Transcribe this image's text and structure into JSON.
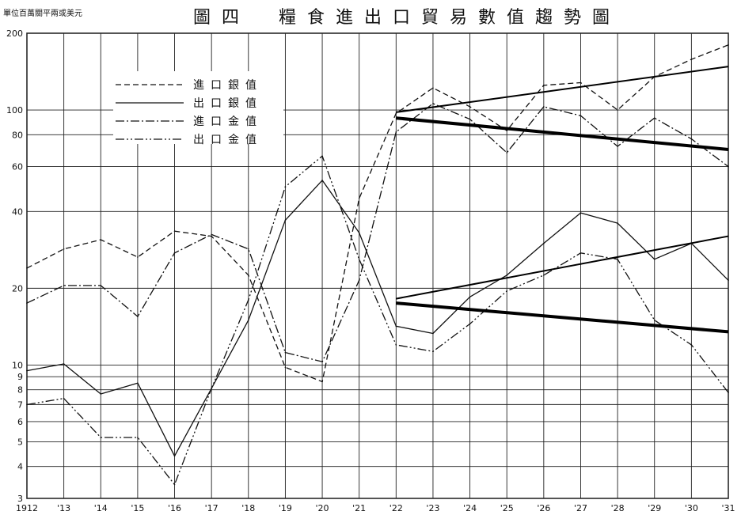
{
  "header": {
    "unit_note": "單位百萬關平兩或美元",
    "title": "圖四　糧食進出口貿易數值趨勢圖"
  },
  "chart_data": {
    "type": "line",
    "title": "圖四　糧食進出口貿易數值趨勢圖",
    "ylabel": "單位百萬關平兩或美元",
    "xlabel": "",
    "y_scale": "log",
    "ylim": [
      3,
      200
    ],
    "x": [
      1912,
      1913,
      1914,
      1915,
      1916,
      1917,
      1918,
      1919,
      1920,
      1921,
      1922,
      1923,
      1924,
      1925,
      1926,
      1927,
      1928,
      1929,
      1930,
      1931
    ],
    "x_tick_labels": [
      "1912",
      "'13",
      "'14",
      "'15",
      "'16",
      "'17",
      "'18",
      "'19",
      "'20",
      "'21",
      "'22",
      "'23",
      "'24",
      "'25",
      "'26",
      "'27",
      "'28",
      "'29",
      "'30",
      "'31"
    ],
    "y_ticks": [
      3,
      4,
      5,
      6,
      7,
      8,
      9,
      10,
      20,
      40,
      60,
      80,
      100,
      200
    ],
    "y_tick_labels": [
      "3",
      "4",
      "5",
      "6",
      "7",
      "8",
      "9",
      "10",
      "20",
      "40",
      "60",
      "80",
      "100",
      "200"
    ],
    "series": [
      {
        "name": "進口銀值",
        "style": "dashed",
        "values": [
          24,
          28.5,
          31,
          26.5,
          33.5,
          32,
          22.5,
          9.8,
          8.6,
          45,
          97,
          122,
          103,
          83,
          125,
          128,
          100,
          135,
          158,
          180
        ]
      },
      {
        "name": "出口銀值",
        "style": "solid",
        "values": [
          9.5,
          10.1,
          7.7,
          8.5,
          4.4,
          8.1,
          15,
          37,
          53,
          33,
          14.2,
          13.3,
          18.5,
          22.5,
          30,
          39.5,
          36,
          26,
          30,
          21.5
        ]
      },
      {
        "name": "進口金值",
        "style": "dashdot",
        "values": [
          17.5,
          20.5,
          20.5,
          15.5,
          27.5,
          32.5,
          28.5,
          11.2,
          10.3,
          21.5,
          82,
          106,
          92,
          68,
          103,
          95,
          72,
          93,
          77,
          60
        ]
      },
      {
        "name": "出口金值",
        "style": "dashdotdot",
        "values": [
          7,
          7.4,
          5.2,
          5.2,
          3.4,
          8.1,
          18,
          50,
          66,
          26,
          12,
          11.3,
          14.5,
          19.5,
          22.5,
          27.5,
          26,
          15,
          12,
          7.8
        ]
      }
    ],
    "trend_lines": [
      {
        "label": "",
        "weight": "thin",
        "x": [
          1922,
          1931
        ],
        "y": [
          98,
          148
        ]
      },
      {
        "label": "",
        "weight": "thick",
        "x": [
          1922,
          1931
        ],
        "y": [
          93,
          70
        ]
      },
      {
        "label": "",
        "weight": "thin",
        "x": [
          1922,
          1931
        ],
        "y": [
          18.2,
          32
        ]
      },
      {
        "label": "",
        "weight": "thick",
        "x": [
          1922,
          1931
        ],
        "y": [
          17.5,
          13.5
        ]
      }
    ],
    "legend_position": "top-left",
    "grid": true
  }
}
